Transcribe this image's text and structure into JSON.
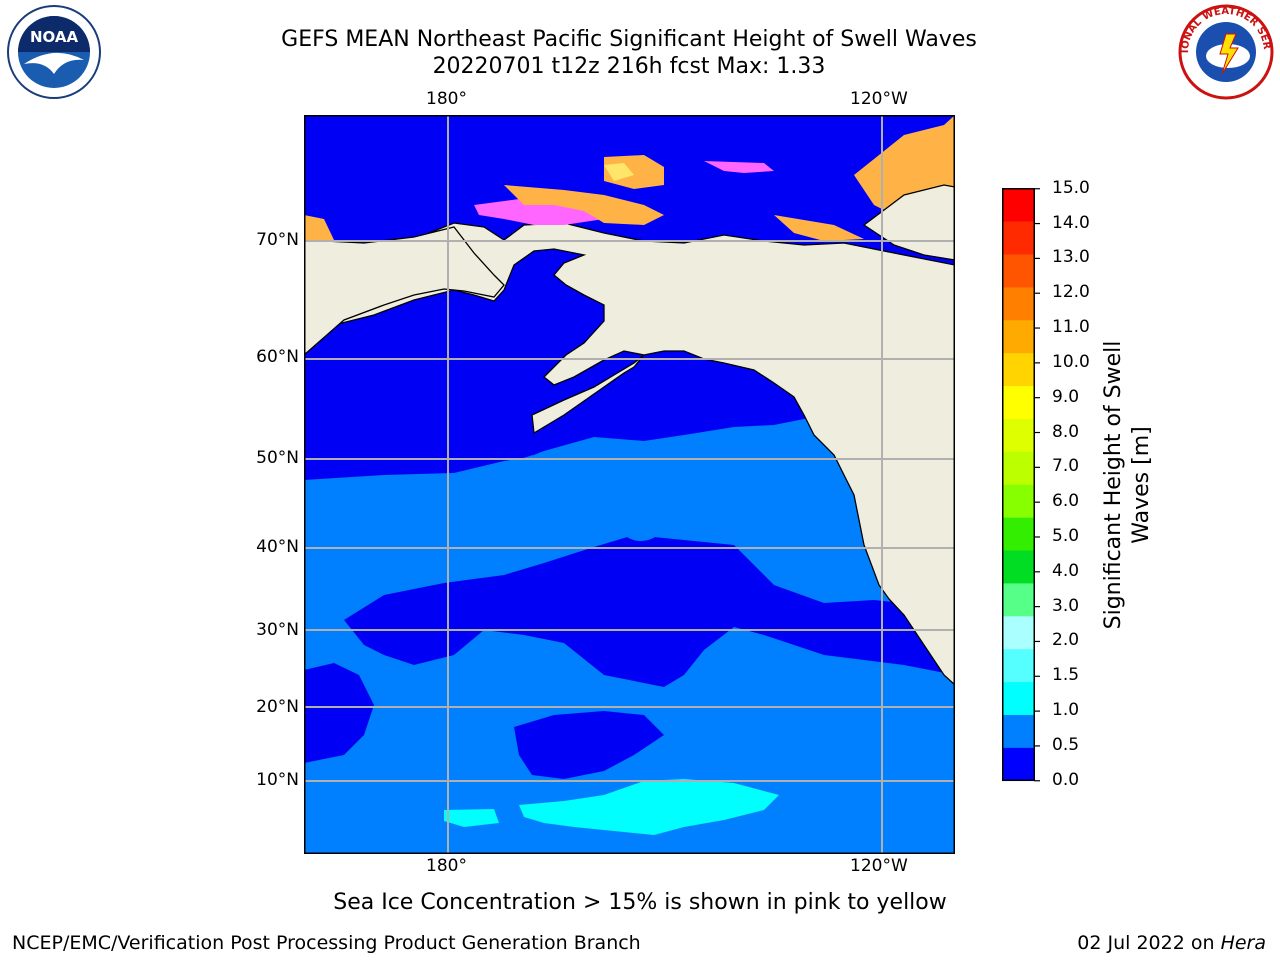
{
  "title": {
    "line1": "GEFS MEAN Northeast Pacific Significant Height of Swell Waves",
    "line2": "20220701 t12z 216h fcst   Max: 1.33"
  },
  "map": {
    "top_lon_labels": [
      "180°",
      "120°W"
    ],
    "bottom_lon_labels": [
      "180°",
      "120°W"
    ],
    "lat_labels": [
      "70°N",
      "60°N",
      "50°N",
      "40°N",
      "30°N",
      "20°N",
      "10°N"
    ],
    "colors": {
      "land": "#efedde",
      "swell_0_0_5": "#0000f5",
      "swell_0_5_1_0": "#0080ff",
      "swell_1_0_1_5": "#00ffff",
      "ice_pink": "#ff66ff",
      "ice_orange": "#ffb347",
      "ice_yellow": "#ffe66b",
      "grid": "#b0b0b0"
    }
  },
  "colorbar": {
    "title_line1": "Significant Height of Swell",
    "title_line2": "Waves [m]",
    "tick_labels": [
      "15.0",
      "14.0",
      "13.0",
      "12.0",
      "11.0",
      "10.0",
      "9.0",
      "8.0",
      "7.0",
      "6.0",
      "5.0",
      "4.0",
      "3.0",
      "2.0",
      "1.5",
      "1.0",
      "0.5",
      "0.0"
    ],
    "colors_top_to_bottom": [
      "#ff0000",
      "#ff2a00",
      "#ff5500",
      "#ff8000",
      "#ffaa00",
      "#ffd400",
      "#ffff00",
      "#ddff00",
      "#bbff00",
      "#88ff00",
      "#33ee00",
      "#00dd22",
      "#55ff88",
      "#aaffff",
      "#55ffff",
      "#00ffff",
      "#0080ff",
      "#0000ff"
    ]
  },
  "caption": "Sea Ice Concentration > 15% is shown in pink to yellow",
  "footer": {
    "left": "NCEP/EMC/Verification Post Processing Product Generation Branch",
    "right_prefix": "02 Jul 2022 on ",
    "right_host": "Hera"
  },
  "logos": {
    "noaa_text": "NOAA",
    "nws_text": "NATIONAL WEATHER SERVICE"
  }
}
